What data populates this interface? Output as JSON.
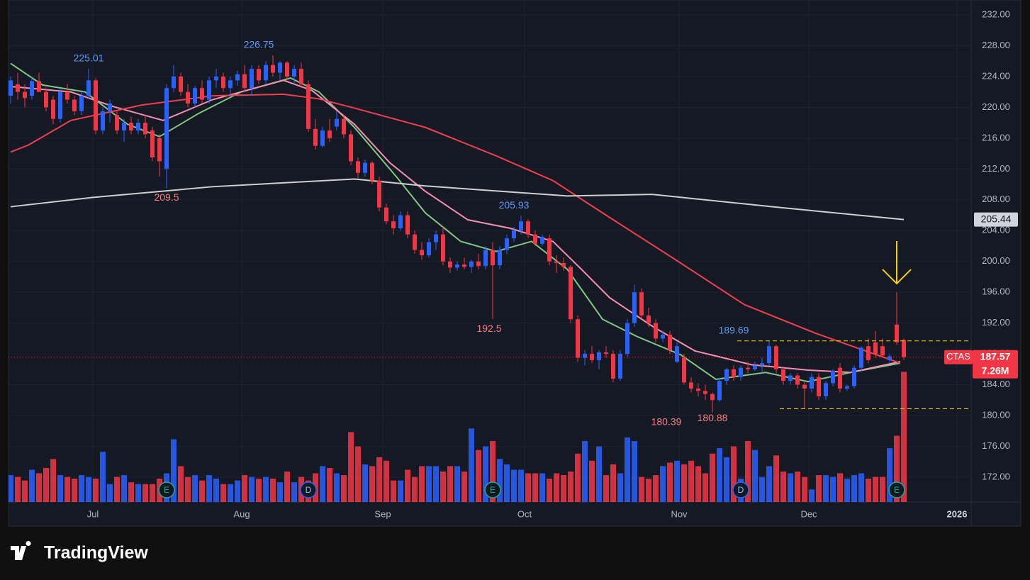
{
  "chart_data": {
    "type": "candlestick",
    "symbol": "CTAS",
    "watermark": "TradingView",
    "up_color": "#2962ff",
    "down_color": "#f23645",
    "xlim": [
      -0.3,
      135.5
    ],
    "xticks": [
      {
        "value": 11.6,
        "label": "Jul"
      },
      {
        "value": 32.6,
        "label": "Aug"
      },
      {
        "value": 52.5,
        "label": "Sep"
      },
      {
        "value": 72.5,
        "label": "Oct"
      },
      {
        "value": 94.3,
        "label": "Nov"
      },
      {
        "value": 112.6,
        "label": "Dec"
      },
      {
        "value": 133.5,
        "label": "2026"
      }
    ],
    "ylim": [
      168.78,
      233.93
    ],
    "yticks": [
      {
        "value": 172,
        "label": "172.00"
      },
      {
        "value": 176,
        "label": "176.00"
      },
      {
        "value": 180,
        "label": "180.00"
      },
      {
        "value": 184,
        "label": "184.00"
      },
      {
        "value": 188,
        "label": "188.00"
      },
      {
        "value": 192,
        "label": "192.00"
      },
      {
        "value": 196,
        "label": "196.00"
      },
      {
        "value": 200,
        "label": "200.00"
      },
      {
        "value": 204,
        "label": "204.00"
      },
      {
        "value": 208,
        "label": "208.00"
      },
      {
        "value": 212,
        "label": "212.00"
      },
      {
        "value": 216,
        "label": "216.00"
      },
      {
        "value": 220,
        "label": "220.00"
      },
      {
        "value": 224,
        "label": "224.00"
      },
      {
        "value": 228,
        "label": "228.00"
      },
      {
        "value": 232,
        "label": "232.00"
      }
    ],
    "y2lim": [
      0,
      28
    ],
    "grid": true,
    "x": [
      0,
      1,
      2,
      3,
      4,
      5,
      6,
      7,
      8,
      9,
      10,
      11,
      12,
      13,
      14,
      15,
      16,
      17,
      18,
      19,
      20,
      21,
      22,
      23,
      24,
      25,
      26,
      27,
      28,
      29,
      30,
      31,
      32,
      33,
      34,
      35,
      36,
      37,
      38,
      39,
      40,
      41,
      42,
      43,
      44,
      45,
      46,
      47,
      48,
      49,
      50,
      51,
      52,
      53,
      54,
      55,
      56,
      57,
      58,
      59,
      60,
      61,
      62,
      63,
      64,
      65,
      66,
      67,
      68,
      69,
      70,
      71,
      72,
      73,
      74,
      75,
      76,
      77,
      78,
      79,
      80,
      81,
      82,
      83,
      84,
      85,
      86,
      87,
      88,
      89,
      90,
      91,
      92,
      93,
      94,
      95,
      96,
      97,
      98,
      99,
      100,
      101,
      102,
      103,
      104,
      105,
      106,
      107,
      108,
      109,
      110,
      111,
      112,
      113,
      114,
      115,
      116,
      117,
      118,
      119,
      120,
      121,
      122,
      123,
      124,
      125,
      126
    ],
    "candles": [
      [
        221.5,
        224,
        220.5,
        223.5
      ],
      [
        223,
        224.5,
        221,
        222
      ],
      [
        222,
        223,
        220,
        221.2
      ],
      [
        221.5,
        224,
        221,
        223.4
      ],
      [
        223.4,
        224.5,
        222,
        222
      ],
      [
        222,
        222.5,
        219.5,
        220
      ],
      [
        221,
        221.5,
        217.8,
        218.5
      ],
      [
        218.5,
        222.5,
        218,
        222
      ],
      [
        222,
        223,
        220.5,
        221
      ],
      [
        221,
        221.5,
        219,
        219.5
      ],
      [
        219.5,
        222,
        219,
        221.5
      ],
      [
        221.5,
        225.01,
        221,
        223.5
      ],
      [
        223.5,
        223.8,
        216.5,
        217
      ],
      [
        217,
        220,
        216.5,
        219.5
      ],
      [
        219.5,
        221,
        218,
        220.5
      ],
      [
        219,
        219.5,
        216.5,
        217
      ],
      [
        217,
        218.5,
        215.5,
        218
      ],
      [
        218,
        218.8,
        216.5,
        217
      ],
      [
        217,
        218.5,
        216.5,
        218
      ],
      [
        218,
        219,
        216,
        216.5
      ],
      [
        217,
        217.5,
        213,
        213.5
      ],
      [
        216,
        216.5,
        211,
        213
      ],
      [
        212,
        223,
        209.5,
        222.5
      ],
      [
        222.5,
        225.5,
        222,
        224
      ],
      [
        224,
        224.5,
        221.5,
        222
      ],
      [
        222,
        223,
        220,
        220.5
      ],
      [
        220.5,
        222.8,
        220,
        222.5
      ],
      [
        222.5,
        223.5,
        220.5,
        221
      ],
      [
        221,
        224,
        220.5,
        223.5
      ],
      [
        223.5,
        225,
        222.5,
        224
      ],
      [
        224,
        224.5,
        222,
        222.5
      ],
      [
        222.5,
        224,
        221.5,
        223.5
      ],
      [
        223.5,
        224.8,
        222.8,
        224.3
      ],
      [
        224.3,
        225.5,
        222,
        222.5
      ],
      [
        222.5,
        225.5,
        221.5,
        225
      ],
      [
        225,
        225.5,
        223,
        223.5
      ],
      [
        223.5,
        226,
        223,
        225.5
      ],
      [
        225.5,
        226.75,
        224,
        224.5
      ],
      [
        224.5,
        226,
        223.5,
        225.8
      ],
      [
        225.8,
        226,
        223.5,
        224
      ],
      [
        224,
        225.5,
        223,
        225
      ],
      [
        225,
        225.8,
        222.5,
        223
      ],
      [
        223,
        223.5,
        216.8,
        217.2
      ],
      [
        217.2,
        218.5,
        214.5,
        215
      ],
      [
        215,
        217.5,
        214.8,
        217
      ],
      [
        217,
        218.5,
        215.5,
        216
      ],
      [
        217.5,
        219.5,
        217,
        218.5
      ],
      [
        218.5,
        219,
        216,
        216.5
      ],
      [
        216.5,
        217,
        212.5,
        213
      ],
      [
        213,
        213.5,
        210.8,
        211.5
      ],
      [
        211.5,
        213.2,
        211,
        212.8
      ],
      [
        212.8,
        213,
        210,
        210.5
      ],
      [
        210.5,
        211,
        206.5,
        207
      ],
      [
        207,
        207.5,
        204.8,
        205.2
      ],
      [
        205.2,
        206,
        203.5,
        204.3
      ],
      [
        204.3,
        206.5,
        204,
        206
      ],
      [
        206,
        206.5,
        203,
        203.5
      ],
      [
        203.5,
        204,
        201,
        201.5
      ],
      [
        201.5,
        202.5,
        200.2,
        200.8
      ],
      [
        200.8,
        203,
        200.5,
        202.5
      ],
      [
        202.5,
        204,
        201.5,
        203.5
      ],
      [
        203.5,
        204.5,
        199.5,
        200
      ],
      [
        200,
        200.5,
        198.5,
        199.2
      ],
      [
        199.2,
        200,
        198.8,
        199.6
      ],
      [
        199.6,
        200.5,
        199,
        199.3
      ],
      [
        199.3,
        200.2,
        198.5,
        200
      ],
      [
        200,
        201,
        199,
        199.4
      ],
      [
        199.4,
        202,
        199,
        201.5
      ],
      [
        201.5,
        202.5,
        192.5,
        199.5
      ],
      [
        199.5,
        202,
        199,
        201.5
      ],
      [
        201.5,
        203.5,
        201,
        203
      ],
      [
        203,
        204.5,
        202.5,
        204
      ],
      [
        204,
        205.93,
        203.5,
        205.2
      ],
      [
        205.2,
        205.5,
        203,
        203.5
      ],
      [
        203.5,
        204,
        202,
        202.3
      ],
      [
        202.3,
        203.5,
        202,
        203.2
      ],
      [
        203,
        203.5,
        199.5,
        200
      ],
      [
        200,
        200.8,
        198.5,
        199.8
      ],
      [
        199.8,
        200.5,
        198.8,
        199.3
      ],
      [
        199.3,
        199.5,
        192,
        192.5
      ],
      [
        192.5,
        193,
        187,
        187.5
      ],
      [
        187.5,
        188.5,
        186.5,
        188
      ],
      [
        188,
        189,
        186.8,
        187.2
      ],
      [
        187.2,
        188.5,
        186,
        188.2
      ],
      [
        188.2,
        189,
        187.5,
        188
      ],
      [
        188,
        188.5,
        184.3,
        184.8
      ],
      [
        184.8,
        188.5,
        184.5,
        188
      ],
      [
        188,
        192.5,
        187.5,
        192
      ],
      [
        192,
        197,
        191.5,
        196
      ],
      [
        196,
        196.5,
        192.5,
        193
      ],
      [
        193,
        194,
        191.5,
        192
      ],
      [
        192,
        192.5,
        189.5,
        190
      ],
      [
        190,
        191,
        189.5,
        190.5
      ],
      [
        190.5,
        191,
        188,
        188.5
      ],
      [
        187,
        189.5,
        186.8,
        189
      ],
      [
        187.5,
        188,
        184,
        184.3
      ],
      [
        184.3,
        185,
        183,
        183.5
      ],
      [
        183.5,
        184.2,
        182.5,
        183.2
      ],
      [
        183.2,
        184,
        182,
        182.8
      ],
      [
        182.8,
        183,
        180.39,
        182
      ],
      [
        182,
        184.8,
        181.8,
        184.5
      ],
      [
        184.5,
        186.2,
        184,
        186
      ],
      [
        186,
        186.5,
        184.5,
        185
      ],
      [
        185,
        186.5,
        184.5,
        186.2
      ],
      [
        186.2,
        187,
        185.5,
        186
      ],
      [
        186,
        187,
        185.8,
        186.5
      ],
      [
        186.5,
        187.5,
        185.5,
        186.8
      ],
      [
        186.8,
        189.69,
        186.5,
        189
      ],
      [
        189,
        189.2,
        185.5,
        186
      ],
      [
        186,
        186.3,
        184,
        184.5
      ],
      [
        184.5,
        185.5,
        184,
        185.2
      ],
      [
        185.2,
        185.5,
        183.5,
        184
      ],
      [
        184,
        184.5,
        180.88,
        183.5
      ],
      [
        183.5,
        185.5,
        183,
        185
      ],
      [
        185,
        185.5,
        182,
        182.5
      ],
      [
        182.5,
        184.5,
        182,
        184.2
      ],
      [
        184.2,
        186,
        183.8,
        185.8
      ],
      [
        186.2,
        186.8,
        183,
        183.5
      ],
      [
        183.5,
        184,
        183.2,
        183.8
      ],
      [
        183.8,
        186.5,
        183.5,
        186.2
      ],
      [
        186.2,
        189,
        185.8,
        188.8
      ],
      [
        189,
        190,
        186.8,
        187.2
      ],
      [
        189.5,
        191,
        187.5,
        188
      ],
      [
        189,
        190,
        187.5,
        187.8
      ],
      [
        187.2,
        188,
        186.8,
        187.7
      ],
      [
        191.8,
        196,
        189.2,
        189.5
      ],
      [
        189.8,
        190,
        187.2,
        187.57
      ]
    ],
    "volume": [
      1.5,
      1.4,
      1.2,
      1.8,
      1.6,
      1.9,
      2.4,
      1.5,
      1.4,
      1.3,
      1.5,
      1.4,
      1.3,
      2.8,
      1.0,
      1.4,
      1.5,
      1.1,
      1.0,
      1.0,
      1.0,
      1.3,
      1.6,
      3.5,
      2.0,
      1.4,
      1.5,
      1.2,
      1.5,
      1.3,
      1.0,
      1.0,
      1.2,
      1.5,
      1.4,
      1.3,
      1.4,
      1.3,
      1.1,
      1.7,
      1.1,
      1.4,
      1.2,
      1.6,
      2.0,
      1.9,
      1.6,
      1.5,
      3.9,
      3.1,
      2.1,
      2.0,
      2.5,
      2.3,
      1.2,
      1.2,
      1.8,
      1.4,
      2.0,
      2.0,
      2.0,
      1.7,
      2.0,
      2.0,
      1.7,
      4.1,
      2.9,
      3.1,
      3.4,
      2.4,
      2.1,
      1.8,
      1.8,
      1.6,
      1.6,
      1.6,
      1.3,
      1.6,
      1.5,
      1.7,
      2.7,
      3.4,
      2.3,
      3.1,
      1.5,
      2.1,
      1.6,
      3.6,
      3.4,
      1.4,
      1.3,
      1.5,
      2.0,
      2.2,
      2.3,
      2.1,
      2.3,
      2.0,
      1.6,
      2.7,
      3.0,
      2.5,
      3.1,
      1.3,
      3.4,
      2.9,
      1.4,
      2.0,
      2.6,
      1.7,
      1.6,
      1.7,
      1.4,
      0.7,
      1.5,
      1.5,
      1.4,
      1.6,
      1.3,
      1.5,
      1.6,
      1.3,
      1.4,
      1.4,
      3.0,
      3.7,
      7.26
    ],
    "last_volume_label": "7.26M",
    "series": [
      {
        "color": "#81c784",
        "x": [
          0,
          4.5,
          10.5,
          16.5,
          21,
          26.5,
          32.5,
          39.5,
          43.5,
          48.5,
          54.5,
          58.5,
          63.5,
          68.5,
          73.5,
          78.5,
          83.5,
          88.5,
          94.5,
          99.5,
          106.5,
          112.5,
          118.5,
          125.5
        ],
        "values": [
          225.7,
          222.9,
          222.0,
          217.8,
          216.2,
          219.2,
          222.0,
          223.8,
          222.0,
          217.4,
          210.9,
          206.3,
          202.6,
          201.3,
          202.6,
          199.0,
          192.5,
          190.2,
          187.9,
          184.7,
          185.6,
          184.4,
          185.6,
          186.8
        ]
      },
      {
        "color": "#f48fb1",
        "x": [
          0,
          8.5,
          14.5,
          21.5,
          28.5,
          38.5,
          42.5,
          48.5,
          53.5,
          58.5,
          64.5,
          70.5,
          76.5,
          80.5,
          84.5,
          90.5,
          96.5,
          104.5,
          112.5,
          118.5,
          125.5
        ],
        "values": [
          222.7,
          222.0,
          220.1,
          218.3,
          221.0,
          223.5,
          222.2,
          217.8,
          212.8,
          209.1,
          205.4,
          204.3,
          202.6,
          199.0,
          195.3,
          191.6,
          188.4,
          186.6,
          185.9,
          185.6,
          187.0
        ]
      },
      {
        "color": "#ef3e4e",
        "x": [
          0,
          2.5,
          8.5,
          18.5,
          28.5,
          38.5,
          43.5,
          48.5,
          58.5,
          68.5,
          76.5,
          83.5,
          93.5,
          103.5,
          113.5,
          125.5
        ],
        "values": [
          214.2,
          215.1,
          218.3,
          220.3,
          221.5,
          221.7,
          221.1,
          219.9,
          217.4,
          213.7,
          210.5,
          206.3,
          200.4,
          194.4,
          190.7,
          186.8
        ]
      },
      {
        "color": "#cfcfcf",
        "x": [
          0,
          11.5,
          28.5,
          48.5,
          58.5,
          78.5,
          90.5,
          108.5,
          126
        ],
        "values": [
          207.1,
          208.3,
          209.7,
          210.7,
          209.8,
          208.5,
          208.7,
          207.0,
          205.44
        ]
      }
    ],
    "annotations": [
      {
        "x": 11,
        "value": 225.01,
        "kind": "high"
      },
      {
        "x": 22,
        "value": 209.5,
        "kind": "low"
      },
      {
        "x": 35,
        "value": 226.75,
        "kind": "high"
      },
      {
        "x": 71,
        "value": 205.93,
        "kind": "high"
      },
      {
        "x": 67.5,
        "value": 192.5,
        "kind": "low"
      },
      {
        "x": 102,
        "value": 189.69,
        "kind": "high"
      },
      {
        "x": 99,
        "value": 180.88,
        "kind": "low"
      },
      {
        "x": 92.5,
        "value": 180.39,
        "kind": "low"
      }
    ],
    "levels": [
      {
        "value": 189.69,
        "from": 102.5
      },
      {
        "value": 180.88,
        "from": 108.5
      }
    ],
    "events": [
      {
        "x": 22,
        "label": "E"
      },
      {
        "x": 42,
        "label": "D"
      },
      {
        "x": 68,
        "label": "E"
      },
      {
        "x": 103,
        "label": "D"
      },
      {
        "x": 125,
        "label": "E"
      }
    ]
  }
}
